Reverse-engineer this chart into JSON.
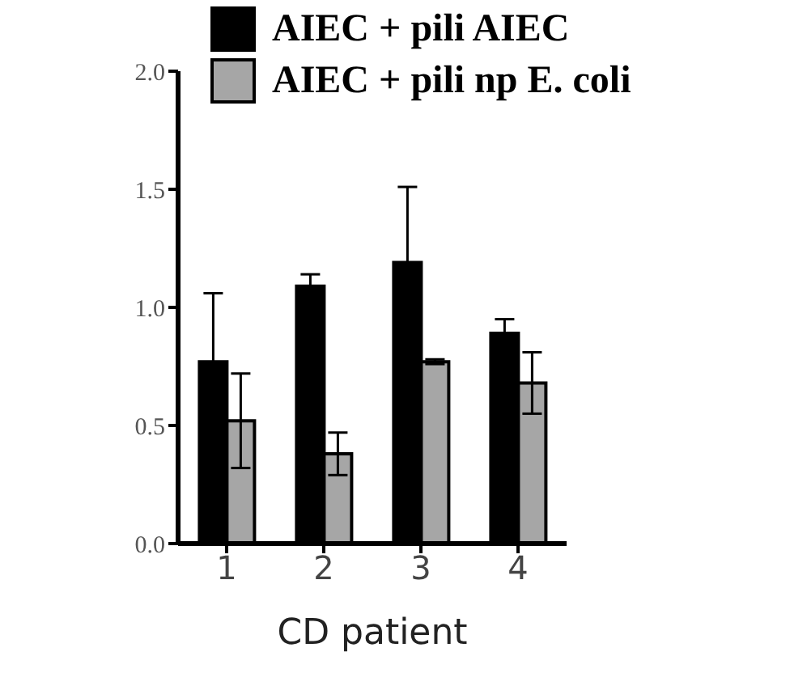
{
  "chart_data": {
    "type": "bar",
    "xlabel": "CD patient",
    "categories": [
      "1",
      "2",
      "3",
      "4"
    ],
    "series": [
      {
        "name": "AIEC + pili AIEC",
        "color": "#000000",
        "values": [
          0.77,
          1.09,
          1.19,
          0.89
        ],
        "errors": [
          0.29,
          0.05,
          0.32,
          0.06
        ]
      },
      {
        "name": "AIEC + pili np E. coli",
        "color": "#a6a6a6",
        "values": [
          0.52,
          0.38,
          0.77,
          0.68
        ],
        "errors": [
          0.2,
          0.09,
          0.01,
          0.13
        ]
      }
    ],
    "ylim": [
      0,
      2
    ],
    "yticks": [
      {
        "value": 0,
        "label": "0.0"
      },
      {
        "value": 0.5,
        "label": "0.5"
      },
      {
        "value": 1,
        "label": "1.0"
      },
      {
        "value": 1.5,
        "label": "1.5"
      },
      {
        "value": 2,
        "label": "2.0"
      }
    ],
    "legend": "top right"
  }
}
